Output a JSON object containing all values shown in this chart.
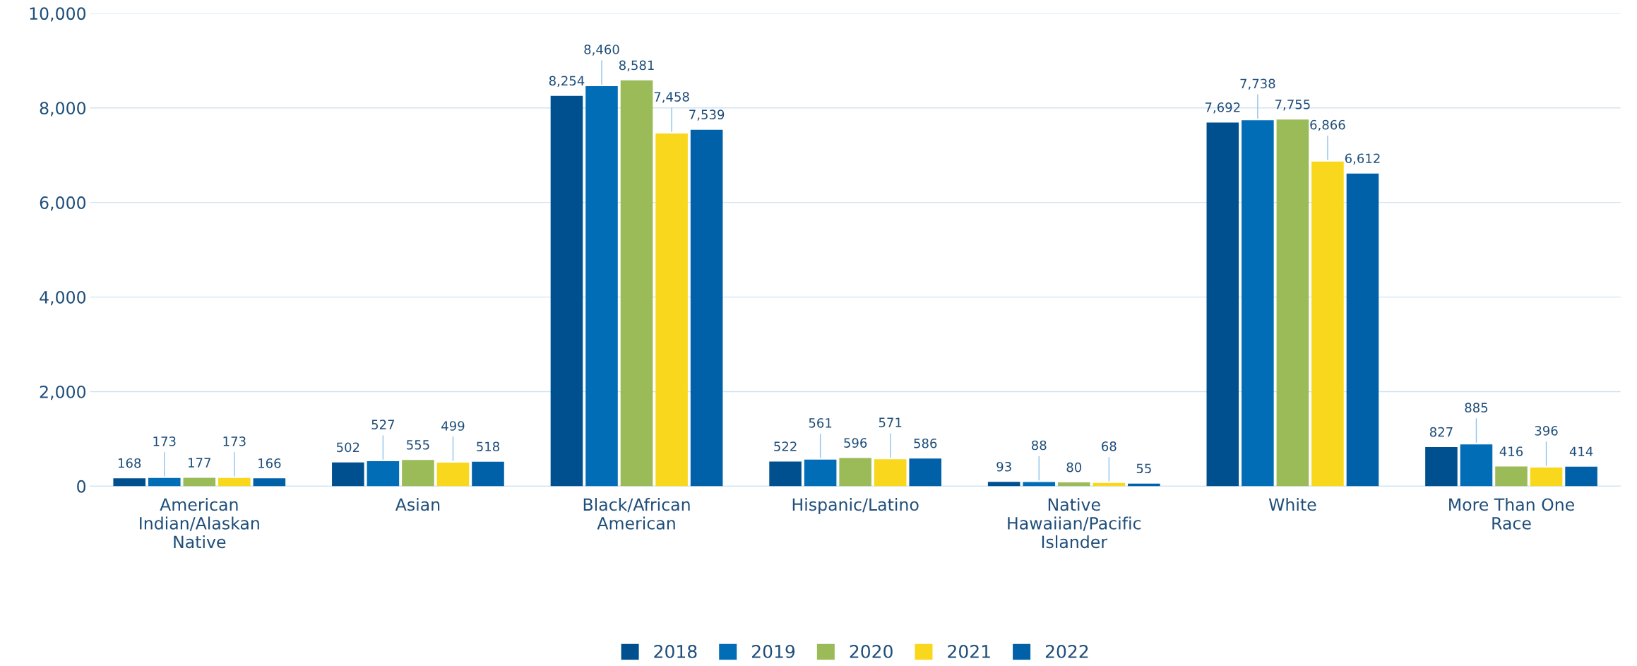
{
  "chart_data": {
    "type": "bar",
    "categories": [
      "American\nIndian/Alaskan\nNative",
      "Asian",
      "Black/African\nAmerican",
      "Hispanic/Latino",
      "Native\nHawaiian/Pacific\nIslander",
      "White",
      "More Than One\nRace"
    ],
    "series": [
      {
        "name": "2018",
        "color": "#00508f",
        "values": [
          168,
          502,
          8254,
          522,
          93,
          7692,
          827
        ],
        "value_labels": [
          "168",
          "502",
          "8,254",
          "522",
          "93",
          "7,692",
          "827"
        ]
      },
      {
        "name": "2019",
        "color": "#006db6",
        "values": [
          173,
          527,
          8460,
          561,
          88,
          7738,
          885
        ],
        "value_labels": [
          "173",
          "527",
          "8,460",
          "561",
          "88",
          "7,738",
          "885"
        ]
      },
      {
        "name": "2020",
        "color": "#9bbb59",
        "values": [
          177,
          555,
          8581,
          596,
          80,
          7755,
          416
        ],
        "value_labels": [
          "177",
          "555",
          "8,581",
          "596",
          "80",
          "7,755",
          "416"
        ]
      },
      {
        "name": "2021",
        "color": "#f9d71c",
        "values": [
          173,
          499,
          7458,
          571,
          68,
          6866,
          396
        ],
        "value_labels": [
          "173",
          "499",
          "7,458",
          "571",
          "68",
          "6,866",
          "396"
        ]
      },
      {
        "name": "2022",
        "color": "#0060a8",
        "values": [
          166,
          518,
          7539,
          586,
          55,
          6612,
          414
        ],
        "value_labels": [
          "166",
          "518",
          "7,539",
          "586",
          "55",
          "6,612",
          "414"
        ]
      }
    ],
    "ylim": [
      0,
      10000
    ],
    "yticks": [
      {
        "value": 0,
        "label": "0"
      },
      {
        "value": 2000,
        "label": "2,000"
      },
      {
        "value": 4000,
        "label": "4,000"
      },
      {
        "value": 6000,
        "label": "6,000"
      },
      {
        "value": 8000,
        "label": "8,000"
      },
      {
        "value": 10000,
        "label": "10,000"
      }
    ],
    "grid": "y",
    "legend": "bottom"
  }
}
